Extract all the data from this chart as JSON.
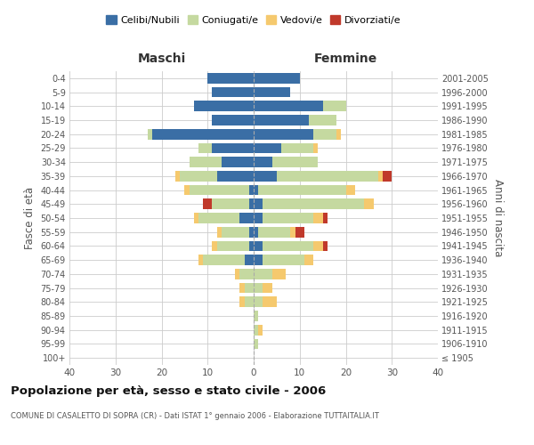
{
  "age_groups": [
    "100+",
    "95-99",
    "90-94",
    "85-89",
    "80-84",
    "75-79",
    "70-74",
    "65-69",
    "60-64",
    "55-59",
    "50-54",
    "45-49",
    "40-44",
    "35-39",
    "30-34",
    "25-29",
    "20-24",
    "15-19",
    "10-14",
    "5-9",
    "0-4"
  ],
  "birth_years": [
    "≤ 1905",
    "1906-1910",
    "1911-1915",
    "1916-1920",
    "1921-1925",
    "1926-1930",
    "1931-1935",
    "1936-1940",
    "1941-1945",
    "1946-1950",
    "1951-1955",
    "1956-1960",
    "1961-1965",
    "1966-1970",
    "1971-1975",
    "1976-1980",
    "1981-1985",
    "1986-1990",
    "1991-1995",
    "1996-2000",
    "2001-2005"
  ],
  "male": {
    "celibi": [
      0,
      0,
      0,
      0,
      0,
      0,
      0,
      2,
      1,
      1,
      3,
      1,
      1,
      8,
      7,
      9,
      22,
      9,
      13,
      9,
      10
    ],
    "coniugati": [
      0,
      0,
      0,
      0,
      2,
      2,
      3,
      9,
      7,
      6,
      9,
      8,
      13,
      8,
      7,
      3,
      1,
      0,
      0,
      0,
      0
    ],
    "vedovi": [
      0,
      0,
      0,
      0,
      1,
      1,
      1,
      1,
      1,
      1,
      1,
      0,
      1,
      1,
      0,
      0,
      0,
      0,
      0,
      0,
      0
    ],
    "divorziati": [
      0,
      0,
      0,
      0,
      0,
      0,
      0,
      0,
      0,
      0,
      0,
      2,
      0,
      0,
      0,
      0,
      0,
      0,
      0,
      0,
      0
    ]
  },
  "female": {
    "nubili": [
      0,
      0,
      0,
      0,
      0,
      0,
      0,
      2,
      2,
      1,
      2,
      2,
      1,
      5,
      4,
      6,
      13,
      12,
      15,
      8,
      10
    ],
    "coniugate": [
      0,
      1,
      1,
      1,
      2,
      2,
      4,
      9,
      11,
      7,
      11,
      22,
      19,
      22,
      10,
      7,
      5,
      6,
      5,
      0,
      0
    ],
    "vedove": [
      0,
      0,
      1,
      0,
      3,
      2,
      3,
      2,
      2,
      1,
      2,
      2,
      2,
      1,
      0,
      1,
      1,
      0,
      0,
      0,
      0
    ],
    "divorziate": [
      0,
      0,
      0,
      0,
      0,
      0,
      0,
      0,
      1,
      2,
      1,
      0,
      0,
      2,
      0,
      0,
      0,
      0,
      0,
      0,
      0
    ]
  },
  "colors": {
    "celibi": "#3a6ea5",
    "coniugati": "#c5d9a0",
    "vedovi": "#f5c96e",
    "divorziati": "#c0392b"
  },
  "xlim": 40,
  "title": "Popolazione per età, sesso e stato civile - 2006",
  "subtitle": "COMUNE DI CASALETTO DI SOPRA (CR) - Dati ISTAT 1° gennaio 2006 - Elaborazione TUTTAITALIA.IT",
  "xlabel_left": "Maschi",
  "xlabel_right": "Femmine",
  "ylabel_left": "Fasce di età",
  "ylabel_right": "Anni di nascita",
  "bg_color": "#ffffff",
  "grid_color": "#cccccc"
}
